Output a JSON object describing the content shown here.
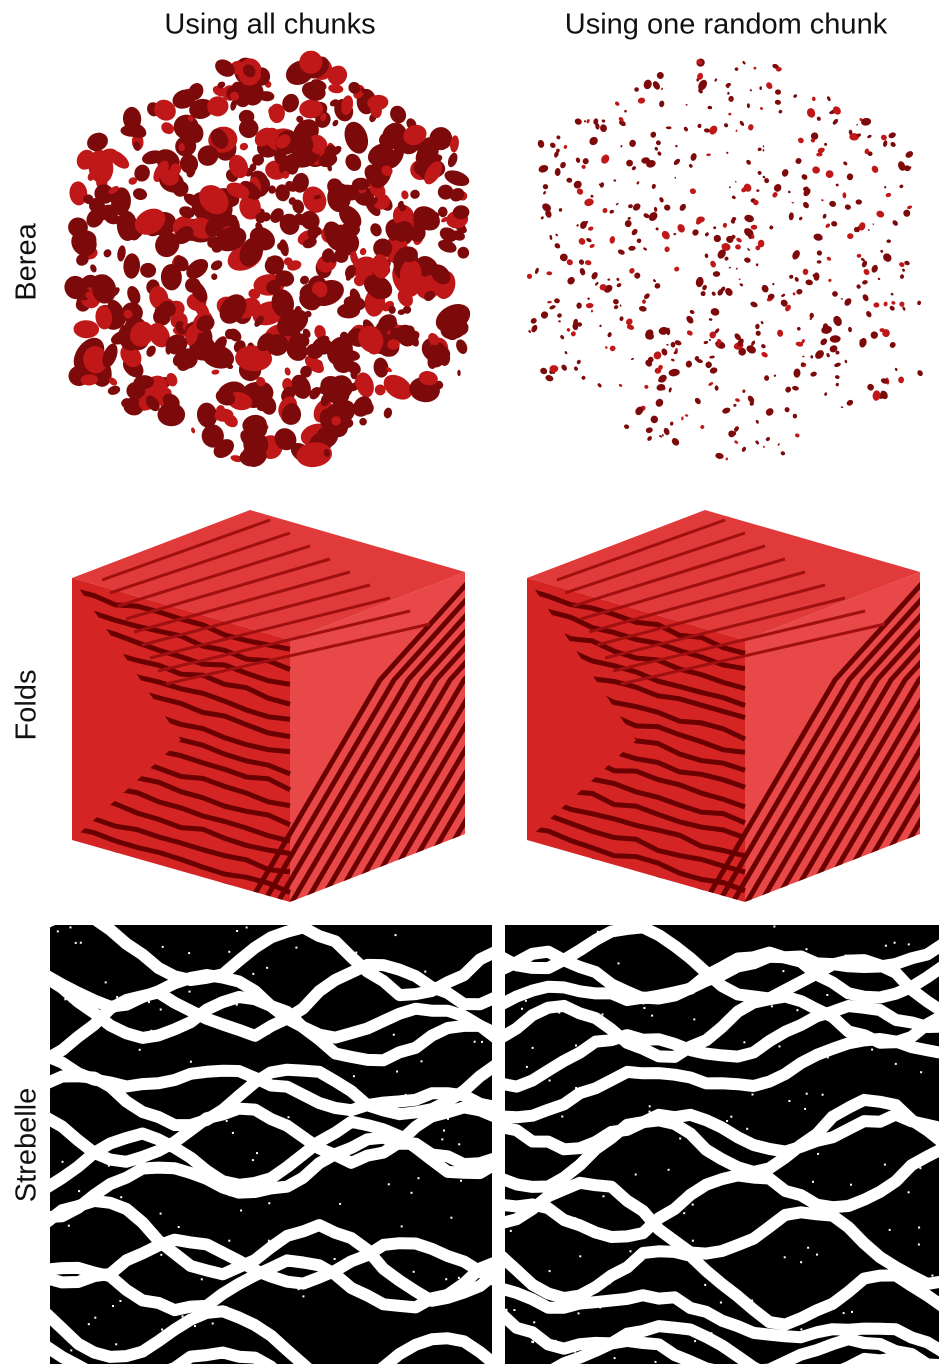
{
  "columns": [
    "Using all chunks",
    "Using one random chunk"
  ],
  "rows": [
    "Berea",
    "Folds",
    "Strebelle"
  ]
}
